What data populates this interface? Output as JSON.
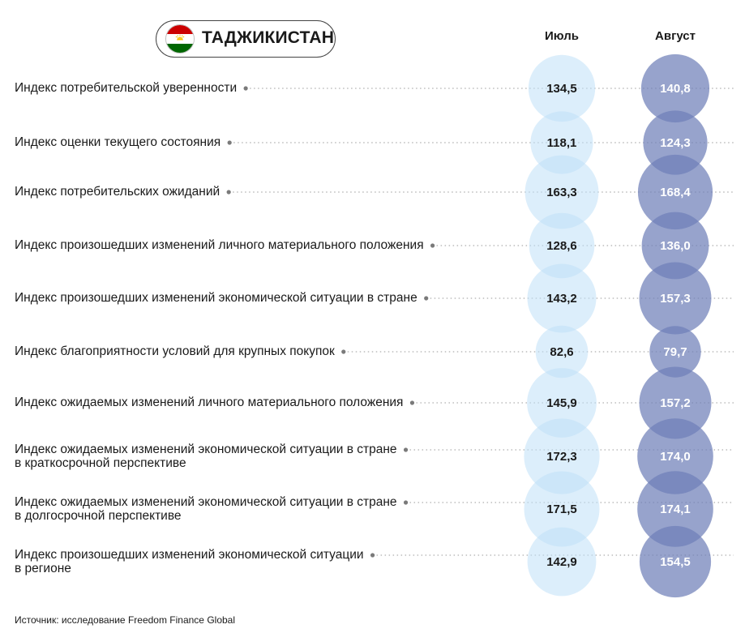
{
  "header": {
    "country": "ТАДЖИКИСТАН",
    "flag_icon": "tajikistan-flag-icon",
    "flag_colors": {
      "top": "#cc0000",
      "middle": "#ffffff",
      "bottom": "#006600",
      "emblem": "#f8c300"
    }
  },
  "chart_data": {
    "type": "bubble",
    "series": [
      {
        "name": "Июль",
        "color": "#bfe0f7",
        "text_color": "#1a1a1a",
        "values": [
          134.5,
          118.1,
          163.3,
          128.6,
          143.2,
          82.6,
          145.9,
          172.3,
          171.5,
          142.9
        ]
      },
      {
        "name": "Август",
        "color": "#6f7fb8",
        "text_color": "#ffffff",
        "values": [
          140.8,
          124.3,
          168.4,
          136.0,
          157.3,
          79.7,
          157.2,
          174.0,
          174.1,
          154.5
        ]
      }
    ],
    "categories": [
      [
        "Индекс потребительской уверенности"
      ],
      [
        "Индекс оценки текущего состояния"
      ],
      [
        "Индекс потребительских ожиданий"
      ],
      [
        "Индекс произошедших изменений личного материального положения"
      ],
      [
        "Индекс произошедших изменений экономической ситуации в стране"
      ],
      [
        "Индекс благоприятности условий для крупных покупок"
      ],
      [
        "Индекс ожидаемых изменений личного материального положения"
      ],
      [
        "Индекс ожидаемых изменений экономической ситуации в стране",
        "в краткосрочной перспективе"
      ],
      [
        "Индекс ожидаемых изменений экономической ситуации в стране",
        "в долгосрочной перспективе"
      ],
      [
        "Индекс произошедших изменений экономической ситуации",
        "в регионе"
      ]
    ],
    "value_labels": [
      [
        "134,5",
        "118,1",
        "163,3",
        "128,6",
        "143,2",
        "82,6",
        "145,9",
        "172,3",
        "171,5",
        "142,9"
      ],
      [
        "140,8",
        "124,3",
        "168,4",
        "136,0",
        "157,3",
        "79,7",
        "157,2",
        "174,0",
        "174,1",
        "154,5"
      ]
    ]
  },
  "footer": {
    "source": "Источник: исследование Freedom Finance Global"
  }
}
